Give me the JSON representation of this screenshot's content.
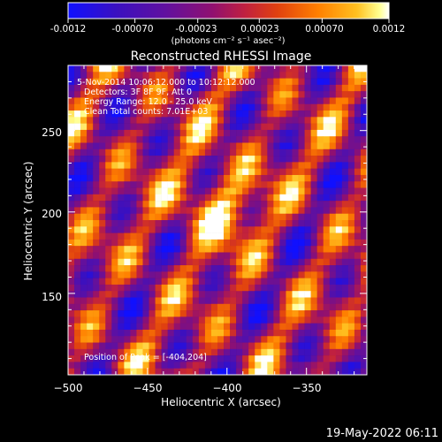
{
  "colorbar": {
    "tick_labels": [
      "-0.0012",
      "-0.00070",
      "-0.00023",
      "0.00023",
      "0.00070",
      "0.0012"
    ],
    "tick_values": [
      -0.0012,
      -0.0007,
      -0.00023,
      0.00023,
      0.0007,
      0.0012
    ],
    "range": [
      -0.0012,
      0.0012
    ],
    "unit_label": "(photons cm⁻² s⁻¹ asec⁻²)",
    "colors": [
      "#1010ff",
      "#3a10c0",
      "#6010a0",
      "#901070",
      "#c02040",
      "#e04010",
      "#ff8000",
      "#ffc020",
      "#ffff90",
      "#ffffff"
    ]
  },
  "footer": {
    "timestamp": "19-May-2022 06:11"
  },
  "chart_data": {
    "type": "heatmap",
    "title": "Reconstructed RHESSI Image",
    "xlabel": "Heliocentric X (arcsec)",
    "ylabel": "Heliocentric Y (arcsec)",
    "xlim": [
      -500,
      -312
    ],
    "ylim": [
      100,
      290
    ],
    "x_ticks": [
      -500,
      -450,
      -400,
      -350
    ],
    "y_ticks": [
      150,
      200,
      250
    ],
    "x_tick_labels": [
      "−500",
      "−450",
      "−400",
      "−350"
    ],
    "y_tick_labels": [
      "150",
      "200",
      "250"
    ],
    "annotations": [
      "5-Nov-2014 10:06:12.000 to 10:12:12.000",
      "Detectors: 3F 8F 9F, Att 0",
      "Energy Range: 12.0 - 25.0 keV",
      "Clean    Total counts: 7.01E+03"
    ],
    "peak_label": "Position of Peak = [-404,204]",
    "peak": {
      "x": -404,
      "y": 204
    },
    "colormap": "rainbow/hot",
    "grid": false
  }
}
